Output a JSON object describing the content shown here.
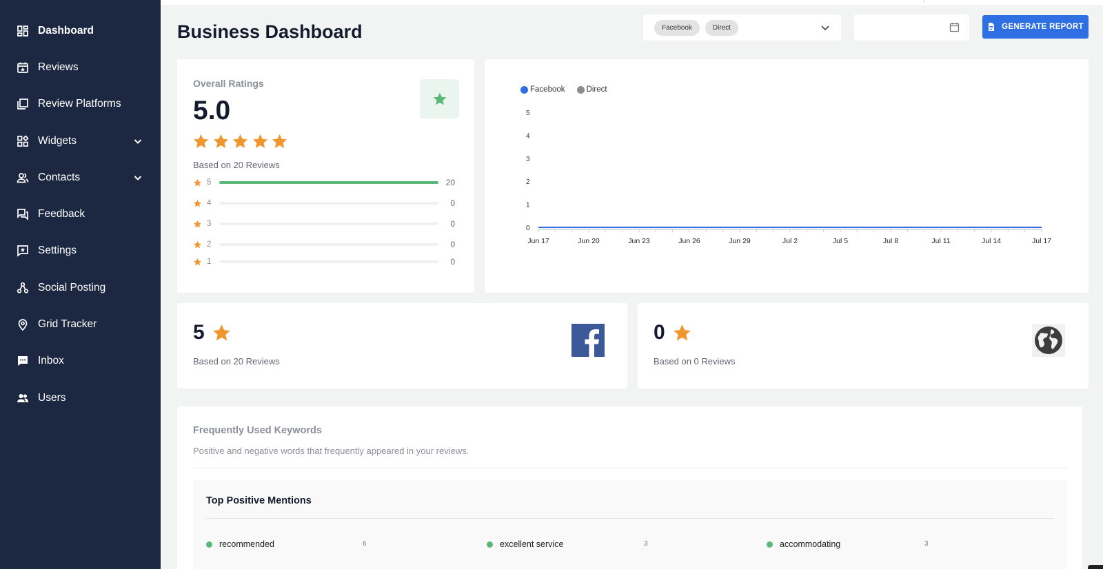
{
  "sidebar": {
    "items": [
      {
        "label": "Dashboard",
        "icon": "dashboard-icon",
        "active": true
      },
      {
        "label": "Reviews",
        "icon": "calendar-star-icon"
      },
      {
        "label": "Review Platforms",
        "icon": "copy-icon"
      },
      {
        "label": "Widgets",
        "icon": "widgets-icon",
        "expandable": true
      },
      {
        "label": "Contacts",
        "icon": "contacts-icon",
        "expandable": true
      },
      {
        "label": "Feedback",
        "icon": "feedback-icon"
      },
      {
        "label": "Settings",
        "icon": "settings-star-icon"
      },
      {
        "label": "Social Posting",
        "icon": "share-icon"
      },
      {
        "label": "Grid Tracker",
        "icon": "map-pin-icon"
      },
      {
        "label": "Inbox",
        "icon": "chat-icon"
      },
      {
        "label": "Users",
        "icon": "users-icon"
      }
    ]
  },
  "header": {
    "title": "Business Dashboard",
    "filter_chips": [
      "Facebook",
      "Direct"
    ],
    "date_value": "",
    "generate_label": "GENERATE REPORT"
  },
  "overall": {
    "label": "Overall Ratings",
    "value": "5.0",
    "stars": 5,
    "based_on": "Based on 20 Reviews",
    "distribution": [
      {
        "stars": "5",
        "count": "20",
        "fraction": 1.0
      },
      {
        "stars": "4",
        "count": "0",
        "fraction": 0
      },
      {
        "stars": "3",
        "count": "0",
        "fraction": 0
      },
      {
        "stars": "2",
        "count": "0",
        "fraction": 0
      },
      {
        "stars": "1",
        "count": "0",
        "fraction": 0
      }
    ]
  },
  "chart_data": {
    "type": "line",
    "x": [
      "Jun 17",
      "Jun 20",
      "Jun 23",
      "Jun 26",
      "Jun 29",
      "Jul 2",
      "Jul 5",
      "Jul 8",
      "Jul 11",
      "Jul 14",
      "Jul 17"
    ],
    "series": [
      {
        "name": "Facebook",
        "color": "#2f6fe4",
        "values": [
          0,
          0,
          0,
          0,
          0,
          0,
          0,
          0,
          0,
          0,
          0
        ]
      },
      {
        "name": "Direct",
        "color": "#8c8c8c",
        "values": [
          0,
          0,
          0,
          0,
          0,
          0,
          0,
          0,
          0,
          0,
          0
        ]
      }
    ],
    "yticks": [
      "0",
      "1",
      "2",
      "3",
      "4",
      "5"
    ],
    "ylim": [
      0,
      5
    ],
    "legend": "top-left",
    "grid": false
  },
  "platforms": {
    "facebook": {
      "value": "5",
      "based_on": "Based on 20 Reviews"
    },
    "direct": {
      "value": "0",
      "based_on": "Based on 0 Reviews"
    }
  },
  "keywords": {
    "title": "Frequently Used Keywords",
    "subtitle": "Positive and negative words that frequently appeared in your reviews.",
    "positive_title": "Top Positive Mentions",
    "positive": [
      {
        "word": "recommended",
        "count": "6"
      },
      {
        "word": "excellent service",
        "count": "3"
      },
      {
        "word": "accommodating",
        "count": "3"
      }
    ]
  },
  "colors": {
    "sidebar": "#1c2841",
    "accent": "#2f6fe4",
    "star": "#f0962e",
    "positive": "#5ab877"
  }
}
